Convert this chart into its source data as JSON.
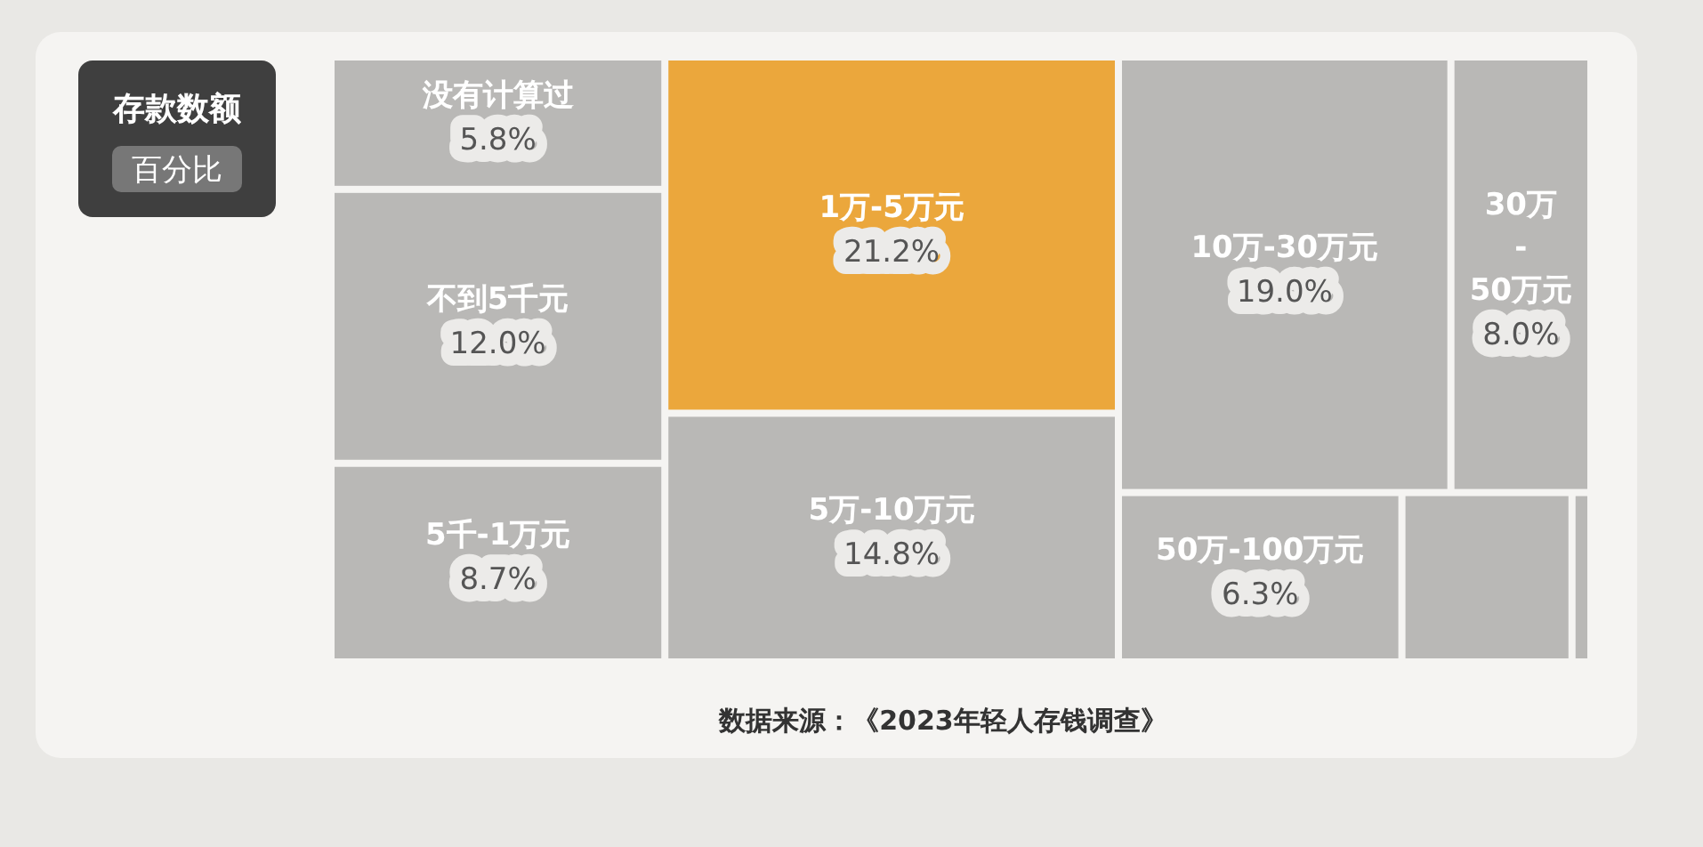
{
  "chart_data": {
    "type": "other",
    "title": "存款数额",
    "subtitle": "百分比",
    "categories": [
      "没有计算过",
      "不到5千元",
      "5千-1万元",
      "1万-5万元",
      "5万-10万元",
      "10万-30万元",
      "30万-50万元",
      "50万-100万元",
      null,
      null
    ],
    "values": [
      5.8,
      12.0,
      8.7,
      21.2,
      14.8,
      19.0,
      8.0,
      6.3,
      null,
      null
    ],
    "value_labels": [
      "5.8%",
      "12.0%",
      "8.7%",
      "21.2%",
      "14.8%",
      "19.0%",
      "8.0%",
      "6.3%",
      null,
      null
    ],
    "colors": [
      "#b9b8b6",
      "#b9b8b6",
      "#b9b8b6",
      "#eba73c",
      "#b9b8b6",
      "#b9b8b6",
      "#b9b8b6",
      "#b9b8b6",
      "#b9b8b6",
      "#b9b8b6"
    ],
    "annotations": [
      "数据来源：《2023年轻人存钱调查》"
    ]
  }
}
